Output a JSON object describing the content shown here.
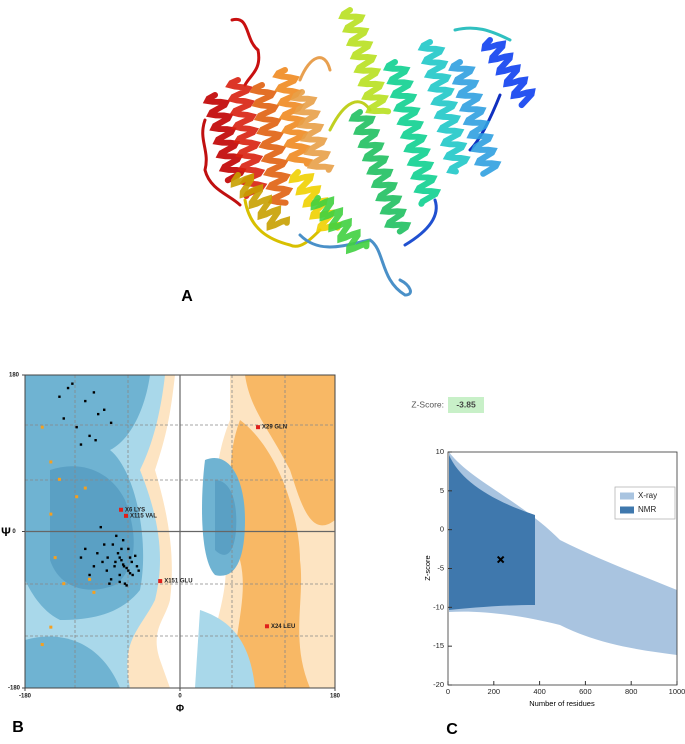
{
  "panel_labels": [
    "A",
    "B",
    "C"
  ],
  "chart_data": [
    {
      "type": "scatter",
      "xlabel": "Φ",
      "ylabel": "Ψ",
      "xlim": [
        -180,
        180
      ],
      "ylim": [
        -180,
        180
      ],
      "xticks": [
        -180,
        0,
        180
      ],
      "yticks": [
        -180,
        0,
        180
      ],
      "color": "#000000",
      "x": [
        -125,
        -110,
        -100,
        -135,
        -95,
        -120,
        -105,
        -88,
        -140,
        -115,
        -80,
        -130,
        -98,
        -65,
        -70,
        -60,
        -75,
        -55,
        -68,
        -72,
        -62,
        -58,
        -80,
        -85,
        -66,
        -50,
        -64,
        -78,
        -90,
        -70,
        -60,
        -56,
        -74,
        -84,
        -96,
        -66,
        -52,
        -48,
        -70,
        -62,
        -76,
        -88,
        -100,
        -110,
        -92,
        -58,
        -68,
        -82,
        -105,
        -115
      ],
      "y": [
        170,
        150,
        160,
        130,
        135,
        120,
        110,
        140,
        155,
        100,
        125,
        165,
        105,
        -40,
        -30,
        -45,
        -35,
        -50,
        -20,
        -25,
        -42,
        -30,
        -55,
        -45,
        -10,
        -40,
        -60,
        -15,
        -35,
        -50,
        -20,
        -35,
        -5,
        -30,
        -25,
        -38,
        -28,
        -45,
        -58,
        -62,
        -40,
        -15,
        -40,
        -20,
        5,
        -48,
        -33,
        -60,
        -50,
        -30
      ],
      "highlight_color": "#f5a020",
      "highlight_x": [
        -160,
        -150,
        -140,
        -120,
        -150,
        -145,
        -105,
        -100,
        -135,
        -150,
        -110,
        -160
      ],
      "highlight_y": [
        120,
        80,
        60,
        40,
        20,
        -30,
        -55,
        -70,
        -60,
        -110,
        50,
        -130
      ],
      "labeled_color": "#e0201b",
      "labeled_points": {
        "labels": [
          "X6 LYS",
          "X115 VAL",
          "X151 GLU",
          "X29 GLN",
          "X24 LEU"
        ],
        "x": [
          -68.5,
          -62.7,
          -23,
          90.6,
          101
        ],
        "y": [
          25,
          18,
          -57,
          120,
          -109
        ]
      }
    },
    {
      "type": "scatter",
      "xlabel": "Number of residues",
      "ylabel": "Z-score",
      "xlim": [
        0,
        1000
      ],
      "ylim": [
        -20,
        10
      ],
      "xticks": [
        0,
        200,
        400,
        600,
        800,
        1000
      ],
      "yticks": [
        -20,
        -15,
        -10,
        -5,
        0,
        5,
        10
      ],
      "legend": "upper right",
      "legend_entries": [
        {
          "name": "X-ray",
          "color": "#a9c4e0"
        },
        {
          "name": "NMR",
          "color": "#3f78ad"
        }
      ],
      "score_label": "Z-Score:",
      "color": "#000000",
      "x": [
        230
      ],
      "y": [
        -3.85
      ]
    }
  ]
}
